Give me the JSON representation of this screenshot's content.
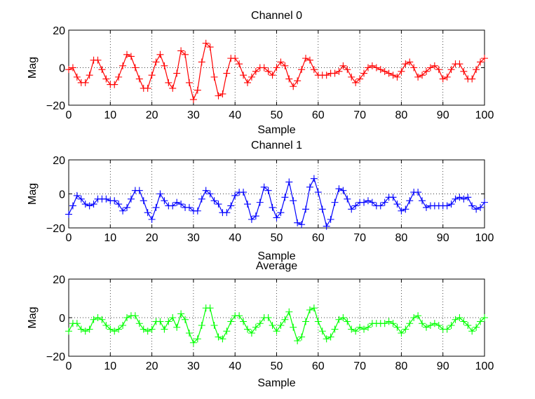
{
  "chart_data": [
    {
      "type": "line",
      "title": "Channel 0",
      "xlabel": "Sample",
      "ylabel": "Mag",
      "xlim": [
        0,
        100
      ],
      "ylim": [
        -20,
        20
      ],
      "xticks": [
        0,
        10,
        20,
        30,
        40,
        50,
        60,
        70,
        80,
        90,
        100
      ],
      "yticks": [
        -20,
        0,
        20
      ],
      "grid": true,
      "marker": "+",
      "series": [
        {
          "name": "Channel 0",
          "color": "#ff0000",
          "x": [
            0,
            1,
            2,
            3,
            4,
            5,
            6,
            7,
            8,
            9,
            10,
            11,
            12,
            13,
            14,
            15,
            16,
            17,
            18,
            19,
            20,
            21,
            22,
            23,
            24,
            25,
            26,
            27,
            28,
            29,
            30,
            31,
            32,
            33,
            34,
            35,
            36,
            37,
            38,
            39,
            40,
            41,
            42,
            43,
            44,
            45,
            46,
            47,
            48,
            49,
            50,
            51,
            52,
            53,
            54,
            55,
            56,
            57,
            58,
            59,
            60,
            61,
            62,
            63,
            64,
            65,
            66,
            67,
            68,
            69,
            70,
            71,
            72,
            73,
            74,
            75,
            76,
            77,
            78,
            79,
            80,
            81,
            82,
            83,
            84,
            85,
            86,
            87,
            88,
            89,
            90,
            91,
            92,
            93,
            94,
            95,
            96,
            97,
            98,
            99,
            100
          ],
          "values": [
            -1,
            0,
            -5,
            -8,
            -8,
            -4,
            4,
            4,
            -1,
            -6,
            -9,
            -9,
            -5,
            1,
            7,
            6,
            0,
            -6,
            -11,
            -11,
            -4,
            3,
            7,
            1,
            -8,
            -11,
            -3,
            9,
            7,
            -8,
            -17,
            -12,
            3,
            13,
            11,
            -5,
            -15,
            -14,
            -3,
            5,
            5,
            2,
            -4,
            -8,
            -5,
            -2,
            0,
            0,
            -2,
            -4,
            0,
            3,
            1,
            -6,
            -10,
            -7,
            -1,
            5,
            4,
            -1,
            -4,
            -4,
            -4,
            -3,
            -3,
            -2,
            1,
            -1,
            -5,
            -8,
            -6,
            -3,
            0,
            1,
            0,
            -1,
            -2,
            -3,
            -4,
            -5,
            -2,
            2,
            3,
            0,
            -5,
            -4,
            -2,
            0,
            1,
            -1,
            -6,
            -5,
            -1,
            2,
            2,
            -2,
            -6,
            -6,
            -1,
            3,
            5
          ]
        }
      ]
    },
    {
      "type": "line",
      "title": "Channel 1",
      "xlabel": "Sample",
      "ylabel": "Mag",
      "xlim": [
        0,
        100
      ],
      "ylim": [
        -20,
        20
      ],
      "xticks": [
        0,
        10,
        20,
        30,
        40,
        50,
        60,
        70,
        80,
        90,
        100
      ],
      "yticks": [
        -20,
        0,
        20
      ],
      "grid": true,
      "marker": "+",
      "series": [
        {
          "name": "Channel 1",
          "color": "#0000ff",
          "x": [
            0,
            1,
            2,
            3,
            4,
            5,
            6,
            7,
            8,
            9,
            10,
            11,
            12,
            13,
            14,
            15,
            16,
            17,
            18,
            19,
            20,
            21,
            22,
            23,
            24,
            25,
            26,
            27,
            28,
            29,
            30,
            31,
            32,
            33,
            34,
            35,
            36,
            37,
            38,
            39,
            40,
            41,
            42,
            43,
            44,
            45,
            46,
            47,
            48,
            49,
            50,
            51,
            52,
            53,
            54,
            55,
            56,
            57,
            58,
            59,
            60,
            61,
            62,
            63,
            64,
            65,
            66,
            67,
            68,
            69,
            70,
            71,
            72,
            73,
            74,
            75,
            76,
            77,
            78,
            79,
            80,
            81,
            82,
            83,
            84,
            85,
            86,
            87,
            88,
            89,
            90,
            91,
            92,
            93,
            94,
            95,
            96,
            97,
            98,
            99,
            100
          ],
          "values": [
            -12,
            -7,
            -1,
            -3,
            -6,
            -7,
            -6,
            -3,
            -3,
            -3,
            -4,
            -4,
            -6,
            -10,
            -8,
            -3,
            2,
            2,
            -4,
            -11,
            -15,
            -8,
            0,
            -4,
            -7,
            -7,
            -5,
            -6,
            -8,
            -8,
            -10,
            -10,
            -3,
            2,
            0,
            -4,
            -6,
            -11,
            -11,
            -7,
            -1,
            1,
            1,
            -6,
            -15,
            -13,
            -5,
            4,
            2,
            -8,
            -14,
            -11,
            -2,
            7,
            -4,
            -17,
            -18,
            -9,
            4,
            9,
            1,
            -9,
            -19,
            -15,
            -5,
            3,
            2,
            -3,
            -9,
            -7,
            -5,
            -5,
            -4,
            -5,
            -7,
            -7,
            -5,
            -2,
            -2,
            -6,
            -10,
            -9,
            -4,
            1,
            1,
            -4,
            -8,
            -7,
            -7,
            -7,
            -7,
            -7,
            -6,
            -3,
            -2,
            -3,
            -2,
            -7,
            -9,
            -8,
            -5
          ]
        }
      ]
    },
    {
      "type": "line",
      "title": "Average",
      "xlabel": "Sample",
      "ylabel": "Mag",
      "xlim": [
        0,
        100
      ],
      "ylim": [
        -20,
        20
      ],
      "xticks": [
        0,
        10,
        20,
        30,
        40,
        50,
        60,
        70,
        80,
        90,
        100
      ],
      "yticks": [
        -20,
        0,
        20
      ],
      "grid": true,
      "marker": "+",
      "series": [
        {
          "name": "Average",
          "color": "#00ff00",
          "x": [
            0,
            1,
            2,
            3,
            4,
            5,
            6,
            7,
            8,
            9,
            10,
            11,
            12,
            13,
            14,
            15,
            16,
            17,
            18,
            19,
            20,
            21,
            22,
            23,
            24,
            25,
            26,
            27,
            28,
            29,
            30,
            31,
            32,
            33,
            34,
            35,
            36,
            37,
            38,
            39,
            40,
            41,
            42,
            43,
            44,
            45,
            46,
            47,
            48,
            49,
            50,
            51,
            52,
            53,
            54,
            55,
            56,
            57,
            58,
            59,
            60,
            61,
            62,
            63,
            64,
            65,
            66,
            67,
            68,
            69,
            70,
            71,
            72,
            73,
            74,
            75,
            76,
            77,
            78,
            79,
            80,
            81,
            82,
            83,
            84,
            85,
            86,
            87,
            88,
            89,
            90,
            91,
            92,
            93,
            94,
            95,
            96,
            97,
            98,
            99,
            100
          ],
          "values": [
            -7,
            -3,
            -3,
            -6,
            -7,
            -6,
            -1,
            0,
            -1,
            -4,
            -6,
            -7,
            -6,
            -4,
            0,
            1,
            1,
            -3,
            -6,
            -7,
            -6,
            -2,
            -2,
            -6,
            -2,
            0,
            -5,
            2,
            -1,
            -8,
            -13,
            -11,
            -4,
            5,
            5,
            -4,
            -10,
            -11,
            -7,
            -2,
            1,
            1,
            -2,
            -6,
            -8,
            -5,
            -3,
            0,
            0,
            -4,
            -7,
            -4,
            -1,
            3,
            -5,
            -12,
            -10,
            -2,
            4,
            5,
            -2,
            -7,
            -11,
            -10,
            -6,
            -1,
            0,
            -2,
            -6,
            -7,
            -5,
            -6,
            -5,
            -3,
            -3,
            -3,
            -3,
            -2,
            -3,
            -5,
            -8,
            -6,
            -3,
            0,
            1,
            -3,
            -5,
            -4,
            -3,
            -4,
            -6,
            -6,
            -4,
            -1,
            0,
            -2,
            -4,
            -7,
            -5,
            -2,
            0
          ]
        }
      ]
    }
  ]
}
